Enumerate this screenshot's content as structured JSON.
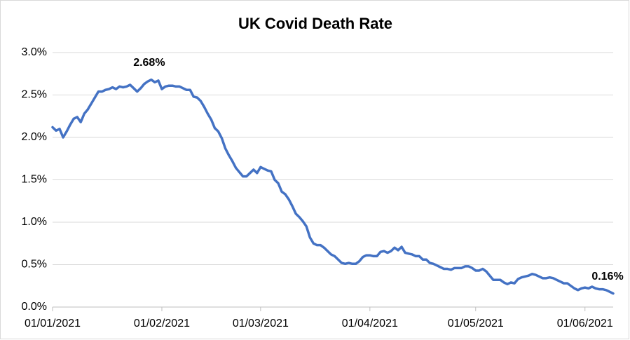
{
  "chart_data": {
    "type": "line",
    "title": "UK Covid Death Rate",
    "color": "#4472c4",
    "grid": true,
    "x": [
      "01/01/2021",
      "02/01/2021",
      "03/01/2021",
      "04/01/2021",
      "05/01/2021",
      "06/01/2021",
      "07/01/2021",
      "08/01/2021",
      "09/01/2021",
      "10/01/2021",
      "11/01/2021",
      "12/01/2021",
      "13/01/2021",
      "14/01/2021",
      "15/01/2021",
      "16/01/2021",
      "17/01/2021",
      "18/01/2021",
      "19/01/2021",
      "20/01/2021",
      "21/01/2021",
      "22/01/2021",
      "23/01/2021",
      "24/01/2021",
      "25/01/2021",
      "26/01/2021",
      "27/01/2021",
      "28/01/2021",
      "29/01/2021",
      "30/01/2021",
      "31/01/2021",
      "01/02/2021",
      "02/02/2021",
      "03/02/2021",
      "04/02/2021",
      "05/02/2021",
      "06/02/2021",
      "07/02/2021",
      "08/02/2021",
      "09/02/2021",
      "10/02/2021",
      "11/02/2021",
      "12/02/2021",
      "13/02/2021",
      "14/02/2021",
      "15/02/2021",
      "16/02/2021",
      "17/02/2021",
      "18/02/2021",
      "19/02/2021",
      "20/02/2021",
      "21/02/2021",
      "22/02/2021",
      "23/02/2021",
      "24/02/2021",
      "25/02/2021",
      "26/02/2021",
      "27/02/2021",
      "28/02/2021",
      "01/03/2021",
      "02/03/2021",
      "03/03/2021",
      "04/03/2021",
      "05/03/2021",
      "06/03/2021",
      "07/03/2021",
      "08/03/2021",
      "09/03/2021",
      "10/03/2021",
      "11/03/2021",
      "12/03/2021",
      "13/03/2021",
      "14/03/2021",
      "15/03/2021",
      "16/03/2021",
      "17/03/2021",
      "18/03/2021",
      "19/03/2021",
      "20/03/2021",
      "21/03/2021",
      "22/03/2021",
      "23/03/2021",
      "24/03/2021",
      "25/03/2021",
      "26/03/2021",
      "27/03/2021",
      "28/03/2021",
      "29/03/2021",
      "30/03/2021",
      "31/03/2021",
      "01/04/2021",
      "02/04/2021",
      "03/04/2021",
      "04/04/2021",
      "05/04/2021",
      "06/04/2021",
      "07/04/2021",
      "08/04/2021",
      "09/04/2021",
      "10/04/2021",
      "11/04/2021",
      "12/04/2021",
      "13/04/2021",
      "14/04/2021",
      "15/04/2021",
      "16/04/2021",
      "17/04/2021",
      "18/04/2021",
      "19/04/2021",
      "20/04/2021",
      "21/04/2021",
      "22/04/2021",
      "23/04/2021",
      "24/04/2021",
      "25/04/2021",
      "26/04/2021",
      "27/04/2021",
      "28/04/2021",
      "29/04/2021",
      "30/04/2021",
      "01/05/2021",
      "02/05/2021",
      "03/05/2021",
      "04/05/2021",
      "05/05/2021",
      "06/05/2021",
      "07/05/2021",
      "08/05/2021",
      "09/05/2021",
      "10/05/2021",
      "11/05/2021",
      "12/05/2021",
      "13/05/2021",
      "14/05/2021",
      "15/05/2021",
      "16/05/2021",
      "17/05/2021",
      "18/05/2021",
      "19/05/2021",
      "20/05/2021",
      "21/05/2021",
      "22/05/2021",
      "23/05/2021",
      "24/05/2021",
      "25/05/2021",
      "26/05/2021",
      "27/05/2021",
      "28/05/2021",
      "29/05/2021",
      "30/05/2021",
      "31/05/2021",
      "01/06/2021",
      "02/06/2021",
      "03/06/2021",
      "04/06/2021",
      "05/06/2021",
      "06/06/2021",
      "07/06/2021",
      "08/06/2021",
      "09/06/2021"
    ],
    "values": [
      2.12,
      2.08,
      2.1,
      2.0,
      2.07,
      2.15,
      2.22,
      2.24,
      2.18,
      2.28,
      2.33,
      2.4,
      2.47,
      2.54,
      2.54,
      2.56,
      2.57,
      2.59,
      2.57,
      2.6,
      2.59,
      2.6,
      2.62,
      2.58,
      2.54,
      2.58,
      2.63,
      2.66,
      2.68,
      2.65,
      2.67,
      2.57,
      2.6,
      2.61,
      2.61,
      2.6,
      2.6,
      2.58,
      2.56,
      2.56,
      2.48,
      2.47,
      2.43,
      2.36,
      2.28,
      2.21,
      2.11,
      2.07,
      1.99,
      1.87,
      1.79,
      1.72,
      1.64,
      1.59,
      1.54,
      1.54,
      1.58,
      1.62,
      1.58,
      1.65,
      1.63,
      1.61,
      1.6,
      1.5,
      1.46,
      1.36,
      1.33,
      1.27,
      1.19,
      1.1,
      1.06,
      1.01,
      0.95,
      0.82,
      0.75,
      0.73,
      0.73,
      0.7,
      0.66,
      0.62,
      0.6,
      0.56,
      0.52,
      0.51,
      0.52,
      0.51,
      0.51,
      0.54,
      0.59,
      0.61,
      0.61,
      0.6,
      0.6,
      0.65,
      0.66,
      0.64,
      0.66,
      0.7,
      0.67,
      0.71,
      0.64,
      0.63,
      0.62,
      0.6,
      0.6,
      0.56,
      0.56,
      0.52,
      0.51,
      0.49,
      0.47,
      0.45,
      0.45,
      0.44,
      0.46,
      0.46,
      0.46,
      0.48,
      0.48,
      0.46,
      0.43,
      0.43,
      0.45,
      0.42,
      0.37,
      0.32,
      0.32,
      0.32,
      0.29,
      0.27,
      0.29,
      0.28,
      0.33,
      0.35,
      0.36,
      0.37,
      0.39,
      0.38,
      0.36,
      0.34,
      0.34,
      0.35,
      0.34,
      0.32,
      0.3,
      0.28,
      0.28,
      0.25,
      0.22,
      0.2,
      0.22,
      0.23,
      0.22,
      0.24,
      0.22,
      0.21,
      0.21,
      0.2,
      0.18,
      0.16
    ],
    "value_labels": [
      null,
      null,
      null,
      null,
      null,
      null,
      null,
      null,
      null,
      null,
      null,
      null,
      null,
      null,
      null,
      null,
      null,
      null,
      null,
      null,
      null,
      null,
      null,
      null,
      null,
      null,
      null,
      null,
      "2.68%",
      null,
      null,
      null,
      null,
      null,
      null,
      null,
      null,
      null,
      null,
      null,
      null,
      null,
      null,
      null,
      null,
      null,
      null,
      null,
      null,
      null,
      null,
      null,
      null,
      null,
      null,
      null,
      null,
      null,
      null,
      null,
      null,
      null,
      null,
      null,
      null,
      null,
      null,
      null,
      null,
      null,
      null,
      null,
      null,
      null,
      null,
      null,
      null,
      null,
      null,
      null,
      null,
      null,
      null,
      null,
      null,
      null,
      null,
      null,
      null,
      null,
      null,
      null,
      null,
      null,
      null,
      null,
      null,
      null,
      null,
      null,
      null,
      null,
      null,
      null,
      null,
      null,
      null,
      null,
      null,
      null,
      null,
      null,
      null,
      null,
      null,
      null,
      null,
      null,
      null,
      null,
      null,
      null,
      null,
      null,
      null,
      null,
      null,
      null,
      null,
      null,
      null,
      null,
      null,
      null,
      null,
      null,
      null,
      null,
      null,
      null,
      null,
      null,
      null,
      null,
      null,
      null,
      null,
      null,
      null,
      null,
      null,
      null,
      null,
      null,
      null,
      null,
      null,
      null,
      null,
      "0.16%"
    ],
    "xlim": [
      "01/01/2021",
      "09/06/2021"
    ],
    "xticks": [
      "01/01/2021",
      "01/02/2021",
      "01/03/2021",
      "01/04/2021",
      "01/05/2021",
      "01/06/2021"
    ],
    "ylim": [
      0,
      3
    ],
    "yticks": [
      {
        "value": 0,
        "label": "0.0%"
      },
      {
        "value": 0.5,
        "label": "0.5%"
      },
      {
        "value": 1,
        "label": "1.0%"
      },
      {
        "value": 1.5,
        "label": "1.5%"
      },
      {
        "value": 2,
        "label": "2.0%"
      },
      {
        "value": 2.5,
        "label": "2.5%"
      },
      {
        "value": 3,
        "label": "3.0%"
      }
    ]
  }
}
